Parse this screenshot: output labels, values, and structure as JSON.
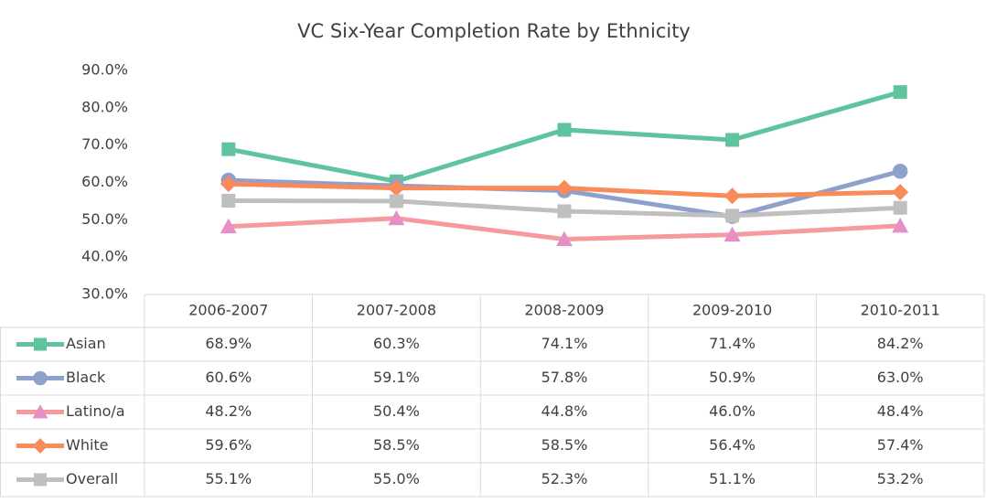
{
  "chart_data": {
    "type": "line",
    "title": "VC Six-Year Completion Rate by Ethnicity",
    "categories": [
      "2006-2007",
      "2007-2008",
      "2008-2009",
      "2009-2010",
      "2010-2011"
    ],
    "series": [
      {
        "name": "Asian",
        "color": "#5fc49e",
        "marker": "square",
        "marker_color": "#5fc49e",
        "values": [
          68.9,
          60.3,
          74.1,
          71.4,
          84.2
        ],
        "value_labels": [
          "68.9%",
          "60.3%",
          "74.1%",
          "71.4%",
          "84.2%"
        ]
      },
      {
        "name": "Black",
        "color": "#8fa0cc",
        "marker": "circle",
        "marker_color": "#8fa0cc",
        "values": [
          60.6,
          59.1,
          57.8,
          50.9,
          63.0
        ],
        "value_labels": [
          "60.6%",
          "59.1%",
          "57.8%",
          "50.9%",
          "63.0%"
        ]
      },
      {
        "name": "Latino/a",
        "color": "#f59a9e",
        "marker": "triangle",
        "marker_color": "#e68fc6",
        "values": [
          48.2,
          50.4,
          44.8,
          46.0,
          48.4
        ],
        "value_labels": [
          "48.2%",
          "50.4%",
          "44.8%",
          "46.0%",
          "48.4%"
        ]
      },
      {
        "name": "White",
        "color": "#f98a5a",
        "marker": "diamond",
        "marker_color": "#f98a5a",
        "values": [
          59.6,
          58.5,
          58.5,
          56.4,
          57.4
        ],
        "value_labels": [
          "59.6%",
          "58.5%",
          "58.5%",
          "56.4%",
          "57.4%"
        ]
      },
      {
        "name": "Overall",
        "color": "#bfbfbf",
        "marker": "square",
        "marker_color": "#bfbfbf",
        "values": [
          55.1,
          55.0,
          52.3,
          51.1,
          53.2
        ],
        "value_labels": [
          "55.1%",
          "55.0%",
          "52.3%",
          "51.1%",
          "53.2%"
        ]
      }
    ],
    "ylim": [
      30,
      90
    ],
    "yticks": [
      {
        "value": 30,
        "label": "30.0%"
      },
      {
        "value": 40,
        "label": "40.0%"
      },
      {
        "value": 50,
        "label": "50.0%"
      },
      {
        "value": 60,
        "label": "60.0%"
      },
      {
        "value": 70,
        "label": "70.0%"
      },
      {
        "value": 80,
        "label": "80.0%"
      },
      {
        "value": 90,
        "label": "90.0%"
      }
    ],
    "grid": false,
    "data_table": true
  }
}
